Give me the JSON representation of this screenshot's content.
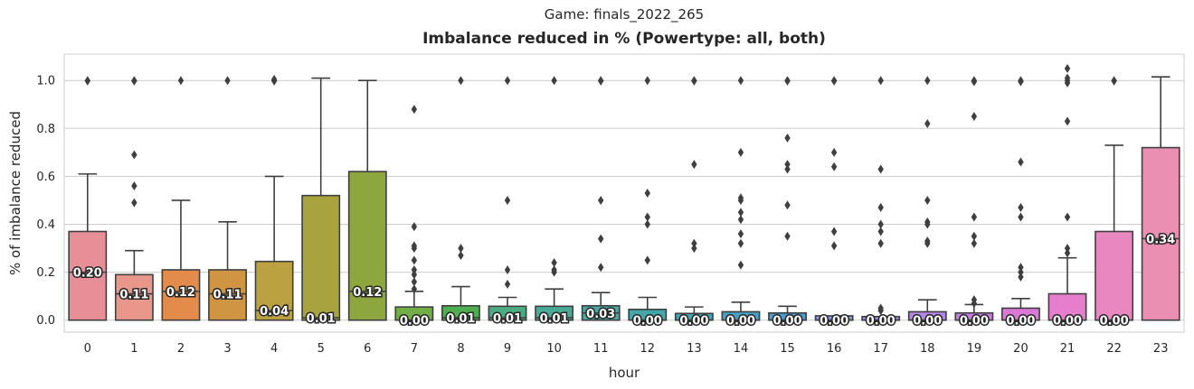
{
  "chart_data": {
    "type": "box",
    "suptitle": "Game: finals_2022_265",
    "title": "Imbalance reduced in % (Powertype: all, both)",
    "xlabel": "hour",
    "ylabel": "% of imbalance reduced",
    "ylim": [
      -0.05,
      1.11
    ],
    "yticks": [
      0.0,
      0.2,
      0.4,
      0.6,
      0.8,
      1.0
    ],
    "ytick_labels": [
      "0.0",
      "0.2",
      "0.4",
      "0.6",
      "0.8",
      "1.0"
    ],
    "grid": "horizontal",
    "categories": [
      "0",
      "1",
      "2",
      "3",
      "4",
      "5",
      "6",
      "7",
      "8",
      "9",
      "10",
      "11",
      "12",
      "13",
      "14",
      "15",
      "16",
      "17",
      "18",
      "19",
      "20",
      "21",
      "22",
      "23"
    ],
    "boxes": [
      {
        "q1": 0.0,
        "q3": 0.37,
        "whislo": 0.0,
        "whishi": 0.61,
        "median": 0.2,
        "median_label": "0.20",
        "fliers": [
          1.0,
          0.998
        ],
        "color": "#e88e96"
      },
      {
        "q1": 0.0,
        "q3": 0.19,
        "whislo": 0.0,
        "whishi": 0.29,
        "median": 0.11,
        "median_label": "0.11",
        "fliers": [
          0.49,
          0.56,
          0.69,
          1.0,
          0.998
        ],
        "color": "#e9968b"
      },
      {
        "q1": 0.0,
        "q3": 0.21,
        "whislo": 0.0,
        "whishi": 0.5,
        "median": 0.12,
        "median_label": "0.12",
        "fliers": [
          1.0
        ],
        "color": "#e38b4a"
      },
      {
        "q1": 0.0,
        "q3": 0.21,
        "whislo": 0.0,
        "whishi": 0.41,
        "median": 0.11,
        "median_label": "0.11",
        "fliers": [
          1.0
        ],
        "color": "#cf9543"
      },
      {
        "q1": 0.0,
        "q3": 0.245,
        "whislo": 0.0,
        "whishi": 0.6,
        "median": 0.04,
        "median_label": "0.04",
        "fliers": [
          1.0,
          0.998,
          1.005
        ],
        "color": "#bca140"
      },
      {
        "q1": 0.0,
        "q3": 0.52,
        "whislo": 0.0,
        "whishi": 1.01,
        "median": 0.01,
        "median_label": "0.01",
        "fliers": [],
        "color": "#a8a33f"
      },
      {
        "q1": 0.0,
        "q3": 0.62,
        "whislo": 0.0,
        "whishi": 1.0,
        "median": 0.12,
        "median_label": "0.12",
        "fliers": [],
        "color": "#8da63e"
      },
      {
        "q1": 0.0,
        "q3": 0.055,
        "whislo": 0.0,
        "whishi": 0.12,
        "median": 0.0,
        "median_label": "0.00",
        "fliers": [
          0.13,
          0.16,
          0.19,
          0.21,
          0.25,
          0.3,
          0.31,
          0.39,
          0.88
        ],
        "color": "#71ae45"
      },
      {
        "q1": 0.0,
        "q3": 0.06,
        "whislo": 0.0,
        "whishi": 0.14,
        "median": 0.01,
        "median_label": "0.01",
        "fliers": [
          0.27,
          0.3,
          1.0
        ],
        "color": "#4fae50"
      },
      {
        "q1": 0.0,
        "q3": 0.058,
        "whislo": 0.0,
        "whishi": 0.095,
        "median": 0.01,
        "median_label": "0.01",
        "fliers": [
          0.15,
          0.21,
          0.5,
          1.0
        ],
        "color": "#4bab83"
      },
      {
        "q1": 0.0,
        "q3": 0.058,
        "whislo": 0.0,
        "whishi": 0.13,
        "median": 0.01,
        "median_label": "0.01",
        "fliers": [
          0.2,
          0.21,
          0.24,
          1.0
        ],
        "color": "#49aa95"
      },
      {
        "q1": 0.0,
        "q3": 0.06,
        "whislo": 0.0,
        "whishi": 0.115,
        "median": 0.03,
        "median_label": "0.03",
        "fliers": [
          0.22,
          0.34,
          0.5,
          0.998,
          1.0
        ],
        "color": "#46a89f"
      },
      {
        "q1": 0.0,
        "q3": 0.045,
        "whislo": 0.0,
        "whishi": 0.095,
        "median": 0.0,
        "median_label": "0.00",
        "fliers": [
          0.25,
          0.4,
          0.43,
          0.53,
          1.0
        ],
        "color": "#44a6ab"
      },
      {
        "q1": 0.0,
        "q3": 0.028,
        "whislo": 0.0,
        "whishi": 0.055,
        "median": 0.0,
        "median_label": "0.00",
        "fliers": [
          0.3,
          0.32,
          0.65,
          1.0,
          0.998
        ],
        "color": "#45a4b6"
      },
      {
        "q1": 0.0,
        "q3": 0.035,
        "whislo": 0.0,
        "whishi": 0.075,
        "median": 0.0,
        "median_label": "0.00",
        "fliers": [
          0.23,
          0.32,
          0.36,
          0.42,
          0.45,
          0.5,
          0.51,
          0.7,
          1.0
        ],
        "color": "#47a1c6"
      },
      {
        "q1": 0.0,
        "q3": 0.03,
        "whislo": 0.0,
        "whishi": 0.058,
        "median": 0.0,
        "median_label": "0.00",
        "fliers": [
          0.35,
          0.48,
          0.63,
          0.65,
          0.76,
          1.0,
          0.998
        ],
        "color": "#4c9ed6"
      },
      {
        "q1": 0.0,
        "q3": 0.018,
        "whislo": 0.0,
        "whishi": 0.018,
        "median": 0.0,
        "median_label": "0.00",
        "fliers": [
          0.31,
          0.37,
          0.64,
          0.7,
          1.0,
          0.998
        ],
        "color": "#7f9be3"
      },
      {
        "q1": 0.0,
        "q3": 0.015,
        "whislo": 0.0,
        "whishi": 0.015,
        "median": 0.0,
        "median_label": "0.00",
        "fliers": [
          0.04,
          0.05,
          0.32,
          0.37,
          0.4,
          0.47,
          0.63,
          1.0
        ],
        "color": "#9c8ee7"
      },
      {
        "q1": 0.0,
        "q3": 0.035,
        "whislo": 0.0,
        "whishi": 0.085,
        "median": 0.0,
        "median_label": "0.00",
        "fliers": [
          0.32,
          0.33,
          0.4,
          0.41,
          0.5,
          0.82,
          1.0
        ],
        "color": "#b486e5"
      },
      {
        "q1": 0.0,
        "q3": 0.03,
        "whislo": 0.0,
        "whishi": 0.065,
        "median": 0.0,
        "median_label": "0.00",
        "fliers": [
          0.07,
          0.085,
          0.32,
          0.35,
          0.43,
          0.85,
          1.0,
          0.995
        ],
        "color": "#c87de4"
      },
      {
        "q1": 0.0,
        "q3": 0.05,
        "whislo": 0.0,
        "whishi": 0.09,
        "median": 0.0,
        "median_label": "0.00",
        "fliers": [
          0.18,
          0.2,
          0.22,
          0.43,
          0.47,
          0.66,
          1.0,
          0.995
        ],
        "color": "#dc79d8"
      },
      {
        "q1": 0.0,
        "q3": 0.11,
        "whislo": 0.0,
        "whishi": 0.26,
        "median": 0.0,
        "median_label": "0.00",
        "fliers": [
          0.28,
          0.3,
          0.43,
          0.83,
          1.0,
          0.99,
          1.01,
          1.05
        ],
        "color": "#e77ecd"
      },
      {
        "q1": 0.0,
        "q3": 0.37,
        "whislo": 0.0,
        "whishi": 0.73,
        "median": 0.0,
        "median_label": "0.00",
        "fliers": [
          1.0,
          0.998
        ],
        "color": "#e987c0"
      },
      {
        "q1": 0.0,
        "q3": 0.72,
        "whislo": 0.0,
        "whishi": 1.015,
        "median": 0.34,
        "median_label": "0.34",
        "fliers": [],
        "color": "#ea8eb2"
      }
    ]
  }
}
